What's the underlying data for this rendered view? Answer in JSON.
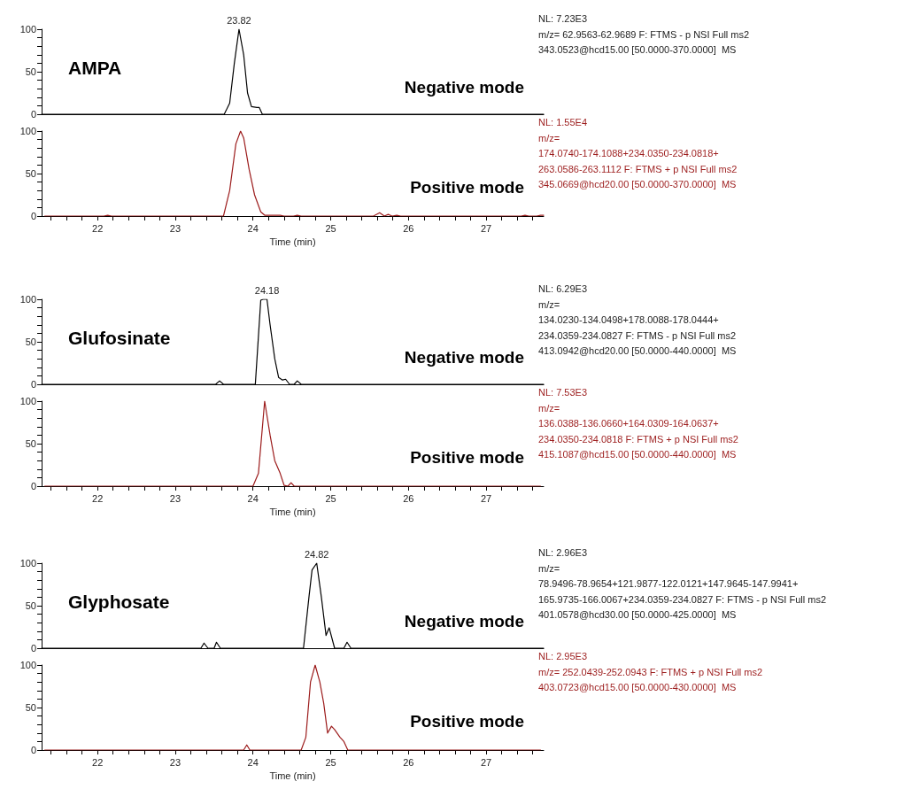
{
  "chart_data": [
    {
      "type": "line",
      "title": "AMPA",
      "subtitle": "Negative mode",
      "tick_labels": "y",
      "xlim": [
        21.28,
        27.74
      ],
      "ylim": [
        0,
        100
      ],
      "yticks": [
        0,
        {
          "value": 10,
          "label": null
        },
        {
          "value": 20,
          "label": null
        },
        {
          "value": 30,
          "label": null
        },
        {
          "value": 40,
          "label": null
        },
        50,
        {
          "value": 60,
          "label": null
        },
        {
          "value": 70,
          "label": null
        },
        {
          "value": 80,
          "label": null
        },
        {
          "value": 90,
          "label": null
        },
        100
      ],
      "annotations": [
        "NL: 7.23E3",
        "m/z= 62.9563-62.9689 F: FTMS - p NSI Full ms2",
        "343.0523@hcd15.00 [50.0000-370.0000]  MS",
        {
          "text": "23.82",
          "x": 23.82,
          "y": 100
        }
      ],
      "series": [
        {
          "color": "#000000",
          "x": [
            21.28,
            23.63,
            23.7,
            23.76,
            23.82,
            23.88,
            23.93,
            23.98,
            24.05,
            24.08,
            24.12,
            27.74
          ],
          "values": [
            0,
            0,
            13,
            60,
            100,
            70,
            25,
            9,
            8,
            8,
            0,
            0
          ]
        }
      ]
    },
    {
      "type": "line",
      "subtitle": "Positive mode",
      "xlabel": "Time (min)",
      "xlim": [
        21.28,
        27.74
      ],
      "xticks": [
        {
          "value": 21.4,
          "label": null
        },
        {
          "value": 21.6,
          "label": null
        },
        {
          "value": 21.8,
          "label": null
        },
        22,
        {
          "value": 22.2,
          "label": null
        },
        {
          "value": 22.4,
          "label": null
        },
        {
          "value": 22.6,
          "label": null
        },
        {
          "value": 22.8,
          "label": null
        },
        23,
        {
          "value": 23.2,
          "label": null
        },
        {
          "value": 23.4,
          "label": null
        },
        {
          "value": 23.6,
          "label": null
        },
        {
          "value": 23.8,
          "label": null
        },
        24,
        {
          "value": 24.2,
          "label": null
        },
        {
          "value": 24.4,
          "label": null
        },
        {
          "value": 24.6,
          "label": null
        },
        {
          "value": 24.8,
          "label": null
        },
        25,
        {
          "value": 25.2,
          "label": null
        },
        {
          "value": 25.4,
          "label": null
        },
        {
          "value": 25.6,
          "label": null
        },
        {
          "value": 25.8,
          "label": null
        },
        26,
        {
          "value": 26.2,
          "label": null
        },
        {
          "value": 26.4,
          "label": null
        },
        {
          "value": 26.6,
          "label": null
        },
        {
          "value": 26.8,
          "label": null
        },
        27,
        {
          "value": 27.2,
          "label": null
        },
        {
          "value": 27.4,
          "label": null
        },
        {
          "value": 27.6,
          "label": null
        }
      ],
      "ylim": [
        0,
        100
      ],
      "yticks": [
        0,
        {
          "value": 10,
          "label": null
        },
        {
          "value": 20,
          "label": null
        },
        {
          "value": 30,
          "label": null
        },
        {
          "value": 40,
          "label": null
        },
        50,
        {
          "value": 60,
          "label": null
        },
        {
          "value": 70,
          "label": null
        },
        {
          "value": 80,
          "label": null
        },
        {
          "value": 90,
          "label": null
        },
        100
      ],
      "annotations": [
        "NL: 1.55E4",
        "m/z=",
        "174.0740-174.1088+234.0350-234.0818+",
        "263.0586-263.1112 F: FTMS + p NSI Full ms2",
        "345.0669@hcd20.00 [50.0000-370.0000]  MS"
      ],
      "series": [
        {
          "color": "#9c1c1c",
          "x": [
            21.32,
            22.08,
            22.13,
            22.18,
            23.62,
            23.7,
            23.78,
            23.84,
            23.88,
            23.95,
            24.02,
            24.1,
            24.15,
            24.3,
            24.35,
            24.4,
            24.52,
            24.57,
            24.62,
            25.55,
            25.63,
            25.69,
            25.74,
            25.79,
            25.85,
            25.9,
            27.45,
            27.5,
            27.55,
            27.65,
            27.7,
            27.74
          ],
          "values": [
            0,
            0,
            1,
            0,
            0,
            30,
            85,
            100,
            92,
            55,
            25,
            5,
            1,
            1,
            1,
            0,
            0,
            1,
            0,
            0,
            4,
            0,
            2,
            0,
            1,
            0,
            0,
            1,
            0,
            0,
            1,
            1
          ]
        }
      ]
    },
    {
      "type": "line",
      "title": "Glufosinate",
      "subtitle": "Negative mode",
      "tick_labels": "y",
      "xlim": [
        21.28,
        27.74
      ],
      "ylim": [
        0,
        100
      ],
      "yticks": [
        0,
        {
          "value": 10,
          "label": null
        },
        {
          "value": 20,
          "label": null
        },
        {
          "value": 30,
          "label": null
        },
        {
          "value": 40,
          "label": null
        },
        50,
        {
          "value": 60,
          "label": null
        },
        {
          "value": 70,
          "label": null
        },
        {
          "value": 80,
          "label": null
        },
        {
          "value": 90,
          "label": null
        },
        100
      ],
      "annotations": [
        "NL: 6.29E3",
        "m/z=",
        "134.0230-134.0498+178.0088-178.0444+",
        "234.0359-234.0827 F: FTMS - p NSI Full ms2",
        "413.0942@hcd20.00 [50.0000-440.0000]  MS",
        {
          "text": "24.18",
          "x": 24.18,
          "y": 100
        }
      ],
      "series": [
        {
          "color": "#000000",
          "x": [
            21.28,
            23.52,
            23.57,
            23.62,
            24.03,
            24.1,
            24.13,
            24.18,
            24.22,
            24.28,
            24.33,
            24.38,
            24.42,
            24.47,
            24.53,
            24.57,
            24.62,
            27.74
          ],
          "values": [
            0,
            0,
            4,
            0,
            0,
            99,
            100,
            100,
            70,
            30,
            8,
            5,
            6,
            0,
            0,
            4,
            0,
            0
          ]
        }
      ]
    },
    {
      "type": "line",
      "subtitle": "Positive mode",
      "xlabel": "Time (min)",
      "xlim": [
        21.28,
        27.74
      ],
      "xticks": [
        {
          "value": 21.4,
          "label": null
        },
        {
          "value": 21.6,
          "label": null
        },
        {
          "value": 21.8,
          "label": null
        },
        22,
        {
          "value": 22.2,
          "label": null
        },
        {
          "value": 22.4,
          "label": null
        },
        {
          "value": 22.6,
          "label": null
        },
        {
          "value": 22.8,
          "label": null
        },
        23,
        {
          "value": 23.2,
          "label": null
        },
        {
          "value": 23.4,
          "label": null
        },
        {
          "value": 23.6,
          "label": null
        },
        {
          "value": 23.8,
          "label": null
        },
        24,
        {
          "value": 24.2,
          "label": null
        },
        {
          "value": 24.4,
          "label": null
        },
        {
          "value": 24.6,
          "label": null
        },
        {
          "value": 24.8,
          "label": null
        },
        25,
        {
          "value": 25.2,
          "label": null
        },
        {
          "value": 25.4,
          "label": null
        },
        {
          "value": 25.6,
          "label": null
        },
        {
          "value": 25.8,
          "label": null
        },
        26,
        {
          "value": 26.2,
          "label": null
        },
        {
          "value": 26.4,
          "label": null
        },
        {
          "value": 26.6,
          "label": null
        },
        {
          "value": 26.8,
          "label": null
        },
        27,
        {
          "value": 27.2,
          "label": null
        },
        {
          "value": 27.4,
          "label": null
        },
        {
          "value": 27.6,
          "label": null
        }
      ],
      "ylim": [
        0,
        100
      ],
      "yticks": [
        0,
        {
          "value": 10,
          "label": null
        },
        {
          "value": 20,
          "label": null
        },
        {
          "value": 30,
          "label": null
        },
        {
          "value": 40,
          "label": null
        },
        50,
        {
          "value": 60,
          "label": null
        },
        {
          "value": 70,
          "label": null
        },
        {
          "value": 80,
          "label": null
        },
        {
          "value": 90,
          "label": null
        },
        100
      ],
      "annotations": [
        "NL: 7.53E3",
        "m/z=",
        "136.0388-136.0660+164.0309-164.0637+",
        "234.0350-234.0818 F: FTMS + p NSI Full ms2",
        "415.1087@hcd15.00 [50.0000-440.0000]  MS"
      ],
      "series": [
        {
          "color": "#9c1c1c",
          "x": [
            21.32,
            24.0,
            24.07,
            24.15,
            24.22,
            24.28,
            24.35,
            24.4,
            24.45,
            24.49,
            24.53,
            27.7
          ],
          "values": [
            0,
            0,
            15,
            100,
            60,
            30,
            15,
            1,
            0,
            4,
            0,
            0
          ]
        }
      ]
    },
    {
      "type": "line",
      "title": "Glyphosate",
      "subtitle": "Negative mode",
      "tick_labels": "y",
      "xlim": [
        21.28,
        27.74
      ],
      "ylim": [
        0,
        100
      ],
      "yticks": [
        0,
        {
          "value": 10,
          "label": null
        },
        {
          "value": 20,
          "label": null
        },
        {
          "value": 30,
          "label": null
        },
        {
          "value": 40,
          "label": null
        },
        50,
        {
          "value": 60,
          "label": null
        },
        {
          "value": 70,
          "label": null
        },
        {
          "value": 80,
          "label": null
        },
        {
          "value": 90,
          "label": null
        },
        100
      ],
      "annotations": [
        "NL: 2.96E3",
        "m/z=",
        "78.9496-78.9654+121.9877-122.0121+147.9645-147.9941+",
        "165.9735-166.0067+234.0359-234.0827 F: FTMS - p NSI Full ms2",
        "401.0578@hcd30.00 [50.0000-425.0000]  MS",
        {
          "text": "24.82",
          "x": 24.82,
          "y": 100
        }
      ],
      "series": [
        {
          "color": "#000000",
          "x": [
            21.28,
            23.33,
            23.37,
            23.42,
            23.5,
            23.53,
            23.58,
            24.65,
            24.72,
            24.76,
            24.82,
            24.88,
            24.94,
            24.98,
            25.05,
            25.17,
            25.21,
            25.26,
            27.74
          ],
          "values": [
            0,
            0,
            6,
            0,
            0,
            7,
            0,
            0,
            60,
            92,
            100,
            60,
            15,
            24,
            0,
            0,
            7,
            0,
            0
          ]
        }
      ]
    },
    {
      "type": "line",
      "subtitle": "Positive mode",
      "xlabel": "Time (min)",
      "xlim": [
        21.28,
        27.74
      ],
      "xticks": [
        {
          "value": 21.4,
          "label": null
        },
        {
          "value": 21.6,
          "label": null
        },
        {
          "value": 21.8,
          "label": null
        },
        22,
        {
          "value": 22.2,
          "label": null
        },
        {
          "value": 22.4,
          "label": null
        },
        {
          "value": 22.6,
          "label": null
        },
        {
          "value": 22.8,
          "label": null
        },
        23,
        {
          "value": 23.2,
          "label": null
        },
        {
          "value": 23.4,
          "label": null
        },
        {
          "value": 23.6,
          "label": null
        },
        {
          "value": 23.8,
          "label": null
        },
        24,
        {
          "value": 24.2,
          "label": null
        },
        {
          "value": 24.4,
          "label": null
        },
        {
          "value": 24.6,
          "label": null
        },
        {
          "value": 24.8,
          "label": null
        },
        25,
        {
          "value": 25.2,
          "label": null
        },
        {
          "value": 25.4,
          "label": null
        },
        {
          "value": 25.6,
          "label": null
        },
        {
          "value": 25.8,
          "label": null
        },
        26,
        {
          "value": 26.2,
          "label": null
        },
        {
          "value": 26.4,
          "label": null
        },
        {
          "value": 26.6,
          "label": null
        },
        {
          "value": 26.8,
          "label": null
        },
        27,
        {
          "value": 27.2,
          "label": null
        },
        {
          "value": 27.4,
          "label": null
        },
        {
          "value": 27.6,
          "label": null
        }
      ],
      "ylim": [
        0,
        100
      ],
      "yticks": [
        0,
        {
          "value": 10,
          "label": null
        },
        {
          "value": 20,
          "label": null
        },
        {
          "value": 30,
          "label": null
        },
        {
          "value": 40,
          "label": null
        },
        50,
        {
          "value": 60,
          "label": null
        },
        {
          "value": 70,
          "label": null
        },
        {
          "value": 80,
          "label": null
        },
        {
          "value": 90,
          "label": null
        },
        100
      ],
      "annotations": [
        "NL: 2.95E3",
        "m/z= 252.0439-252.0943 F: FTMS + p NSI Full ms2",
        "403.0723@hcd15.00 [50.0000-430.0000]  MS"
      ],
      "series": [
        {
          "color": "#9c1c1c",
          "x": [
            21.32,
            23.88,
            23.92,
            23.96,
            24.62,
            24.68,
            24.74,
            24.8,
            24.86,
            24.91,
            24.96,
            25.01,
            25.05,
            25.12,
            25.17,
            25.22,
            27.7
          ],
          "values": [
            0,
            0,
            6,
            0,
            0,
            15,
            80,
            100,
            80,
            55,
            20,
            28,
            24,
            15,
            10,
            0,
            0
          ]
        }
      ]
    }
  ]
}
